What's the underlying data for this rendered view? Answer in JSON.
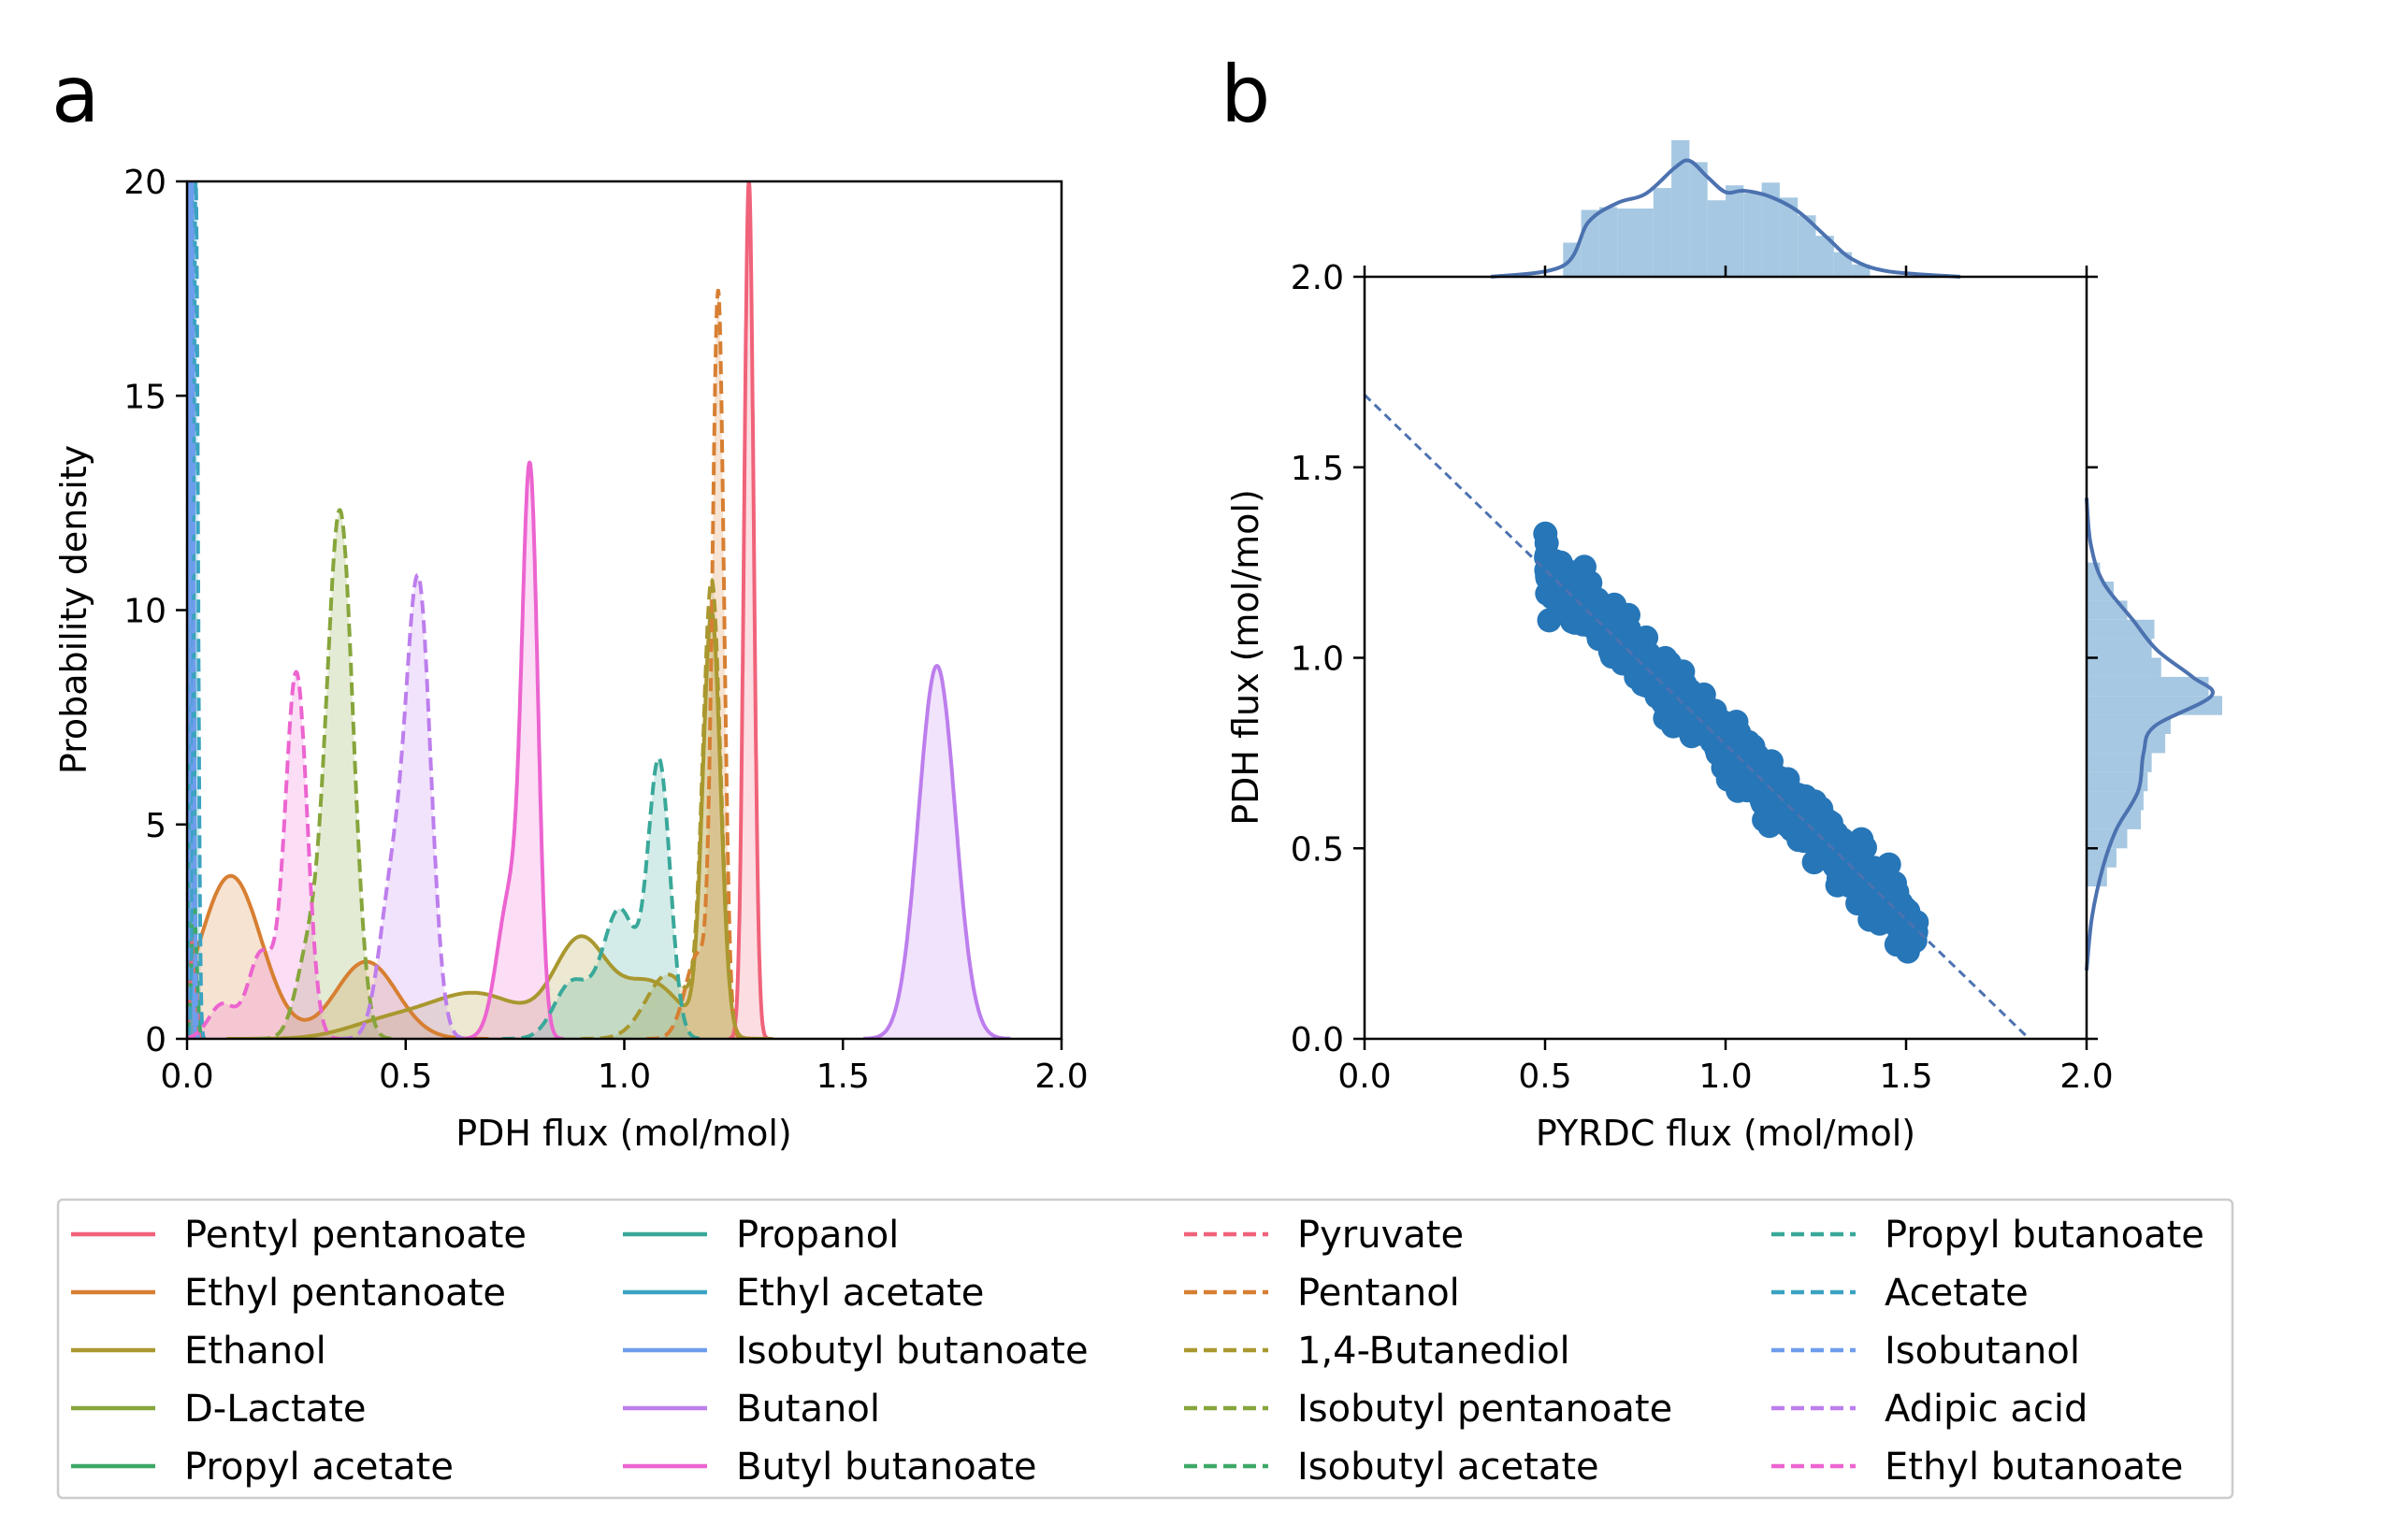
{
  "chart_data": [
    {
      "panel_label": "a",
      "type": "line",
      "subtype": "kde-density",
      "xlabel": "PDH flux (mol/mol)",
      "ylabel": "Probability density",
      "xlim": [
        0.0,
        2.0
      ],
      "ylim": [
        0,
        20
      ],
      "xticks": [
        "0.0",
        "0.5",
        "1.0",
        "1.5",
        "2.0"
      ],
      "yticks": [
        "0",
        "5",
        "10",
        "15",
        "20"
      ],
      "grid": false,
      "legend_position": "below",
      "series": [
        {
          "name": "Pentyl pentanoate",
          "style": "solid",
          "color": "#f0637a",
          "peaks": [
            {
              "x": 1.285,
              "h": 20.0,
              "w": 0.011
            }
          ]
        },
        {
          "name": "Ethyl pentanoate",
          "style": "solid",
          "color": "#d77f32",
          "peaks": [
            {
              "x": 0.1,
              "h": 3.8,
              "w": 0.07
            },
            {
              "x": 0.41,
              "h": 1.8,
              "w": 0.07
            }
          ]
        },
        {
          "name": "Ethanol",
          "style": "solid",
          "color": "#a9982f",
          "peaks": [
            {
              "x": 0.45,
              "h": 0.35,
              "w": 0.09
            },
            {
              "x": 0.66,
              "h": 1.05,
              "w": 0.11
            },
            {
              "x": 0.9,
              "h": 2.2,
              "w": 0.06
            },
            {
              "x": 1.06,
              "h": 1.3,
              "w": 0.07
            },
            {
              "x": 1.2,
              "h": 9.8,
              "w": 0.02
            }
          ]
        },
        {
          "name": "D-Lactate",
          "style": "solid",
          "color": "#86a53b",
          "peaks": [
            {
              "x": 0.014,
              "h": 2.8,
              "w": 0.006
            }
          ]
        },
        {
          "name": "Propyl acetate",
          "style": "solid",
          "color": "#3ea867",
          "peaks": [
            {
              "x": 0.014,
              "h": 3.0,
              "w": 0.006
            }
          ]
        },
        {
          "name": "Propanol",
          "style": "solid",
          "color": "#39a89a",
          "peaks": [
            {
              "x": 0.011,
              "h": 20.0,
              "w": 0.004
            }
          ]
        },
        {
          "name": "Ethyl acetate",
          "style": "solid",
          "color": "#3ba3c2",
          "peaks": [
            {
              "x": 0.009,
              "h": 20.0,
              "w": 0.004
            }
          ]
        },
        {
          "name": "Isobutyl butanoate",
          "style": "solid",
          "color": "#6e9ded",
          "peaks": [
            {
              "x": 0.006,
              "h": 20.0,
              "w": 0.004
            }
          ]
        },
        {
          "name": "Butanol",
          "style": "solid",
          "color": "#bd7eed",
          "peaks": [
            {
              "x": 1.715,
              "h": 8.7,
              "w": 0.042
            }
          ]
        },
        {
          "name": "Butyl butanoate",
          "style": "solid",
          "color": "#ec64d0",
          "peaks": [
            {
              "x": 0.785,
              "h": 12.3,
              "w": 0.018
            },
            {
              "x": 0.74,
              "h": 3.4,
              "w": 0.03
            }
          ]
        },
        {
          "name": "Pyruvate",
          "style": "dashed",
          "color": "#f0637a",
          "peaks": [
            {
              "x": 0.014,
              "h": 2.5,
              "w": 0.006
            }
          ]
        },
        {
          "name": "Pentanol",
          "style": "dashed",
          "color": "#d77f32",
          "peaks": [
            {
              "x": 1.215,
              "h": 16.8,
              "w": 0.013
            },
            {
              "x": 1.17,
              "h": 2.0,
              "w": 0.03
            }
          ]
        },
        {
          "name": "1,4-Butanediol",
          "style": "dashed",
          "color": "#a9982f",
          "peaks": [
            {
              "x": 1.2,
              "h": 10.5,
              "w": 0.02
            },
            {
              "x": 1.1,
              "h": 1.5,
              "w": 0.05
            }
          ]
        },
        {
          "name": "Isobutyl pentanoate",
          "style": "dashed",
          "color": "#86a53b",
          "peaks": [
            {
              "x": 0.35,
              "h": 12.2,
              "w": 0.03
            },
            {
              "x": 0.28,
              "h": 2.0,
              "w": 0.03
            }
          ]
        },
        {
          "name": "Isobutyl acetate",
          "style": "dashed",
          "color": "#3ea867",
          "peaks": [
            {
              "x": 0.016,
              "h": 3.0,
              "w": 0.006
            }
          ]
        },
        {
          "name": "Propyl butanoate",
          "style": "dashed",
          "color": "#39a89a",
          "peaks": [
            {
              "x": 1.08,
              "h": 6.3,
              "w": 0.025
            },
            {
              "x": 0.99,
              "h": 3.0,
              "w": 0.04
            },
            {
              "x": 0.88,
              "h": 1.3,
              "w": 0.04
            }
          ]
        },
        {
          "name": "Acetate",
          "style": "dashed",
          "color": "#3ba3c2",
          "peaks": [
            {
              "x": 0.02,
              "h": 20.0,
              "w": 0.005
            }
          ]
        },
        {
          "name": "Isobutanol",
          "style": "dashed",
          "color": "#6e9ded",
          "peaks": [
            {
              "x": 0.011,
              "h": 20.0,
              "w": 0.004
            }
          ]
        },
        {
          "name": "Adipic acid",
          "style": "dashed",
          "color": "#bd7eed",
          "peaks": [
            {
              "x": 0.53,
              "h": 10.3,
              "w": 0.028
            },
            {
              "x": 0.47,
              "h": 3.5,
              "w": 0.03
            }
          ]
        },
        {
          "name": "Ethyl butanoate",
          "style": "dashed",
          "color": "#ec64d0",
          "peaks": [
            {
              "x": 0.25,
              "h": 8.5,
              "w": 0.025
            },
            {
              "x": 0.17,
              "h": 2.0,
              "w": 0.03
            },
            {
              "x": 0.08,
              "h": 0.8,
              "w": 0.03
            }
          ]
        }
      ]
    },
    {
      "panel_label": "b",
      "type": "scatter",
      "subtype": "joint-plot-with-regression-line",
      "xlabel": "PYRDC flux (mol/mol)",
      "ylabel": "PDH flux (mol/mol)",
      "xlim": [
        0.0,
        2.0
      ],
      "ylim": [
        0.0,
        2.0
      ],
      "xticks": [
        "0.0",
        "0.5",
        "1.0",
        "1.5",
        "2.0"
      ],
      "yticks": [
        "0.0",
        "0.5",
        "1.0",
        "1.5",
        "2.0"
      ],
      "grid": false,
      "point_color": "#2776b8",
      "line_color": "#4c72b0",
      "regression": {
        "intercept": 1.69,
        "slope": -0.918
      },
      "scatter": {
        "x_range": [
          0.5,
          1.53
        ],
        "spread": 0.035
      },
      "marginal_x": {
        "hist_color": "#a6c8e2",
        "bins": [
          [
            0.55,
            0.6,
            0.25
          ],
          [
            0.6,
            0.65,
            0.49
          ],
          [
            0.65,
            0.7,
            0.51
          ],
          [
            0.7,
            0.75,
            0.5
          ],
          [
            0.75,
            0.8,
            0.5
          ],
          [
            0.8,
            0.85,
            0.65
          ],
          [
            0.85,
            0.9,
            1.0
          ],
          [
            0.9,
            0.95,
            0.84
          ],
          [
            0.95,
            1.0,
            0.56
          ],
          [
            1.0,
            1.05,
            0.67
          ],
          [
            1.05,
            1.1,
            0.61
          ],
          [
            1.1,
            1.15,
            0.69
          ],
          [
            1.15,
            1.2,
            0.58
          ],
          [
            1.2,
            1.25,
            0.45
          ],
          [
            1.25,
            1.3,
            0.3
          ],
          [
            1.3,
            1.35,
            0.18
          ],
          [
            1.35,
            1.4,
            0.09
          ]
        ],
        "kde": [
          [
            0.35,
            0.0
          ],
          [
            0.55,
            0.08
          ],
          [
            0.62,
            0.4
          ],
          [
            0.7,
            0.54
          ],
          [
            0.78,
            0.61
          ],
          [
            0.86,
            0.8
          ],
          [
            0.9,
            0.85
          ],
          [
            0.95,
            0.73
          ],
          [
            1.0,
            0.62
          ],
          [
            1.05,
            0.63
          ],
          [
            1.12,
            0.59
          ],
          [
            1.2,
            0.48
          ],
          [
            1.28,
            0.29
          ],
          [
            1.35,
            0.13
          ],
          [
            1.45,
            0.04
          ],
          [
            1.65,
            0.0
          ]
        ]
      },
      "marginal_y": {
        "hist_color": "#a6c8e2",
        "bins": [
          [
            0.4,
            0.45,
            0.15
          ],
          [
            0.45,
            0.5,
            0.22
          ],
          [
            0.5,
            0.55,
            0.3
          ],
          [
            0.55,
            0.6,
            0.4
          ],
          [
            0.6,
            0.65,
            0.42
          ],
          [
            0.65,
            0.7,
            0.45
          ],
          [
            0.7,
            0.75,
            0.48
          ],
          [
            0.75,
            0.8,
            0.58
          ],
          [
            0.8,
            0.85,
            0.62
          ],
          [
            0.85,
            0.9,
            1.0
          ],
          [
            0.9,
            0.95,
            0.9
          ],
          [
            0.95,
            1.0,
            0.55
          ],
          [
            1.0,
            1.05,
            0.48
          ],
          [
            1.05,
            1.1,
            0.5
          ],
          [
            1.1,
            1.15,
            0.3
          ],
          [
            1.15,
            1.2,
            0.2
          ],
          [
            1.2,
            1.25,
            0.1
          ]
        ],
        "kde": [
          [
            0.18,
            0.0
          ],
          [
            0.32,
            0.04
          ],
          [
            0.45,
            0.12
          ],
          [
            0.55,
            0.22
          ],
          [
            0.65,
            0.38
          ],
          [
            0.75,
            0.42
          ],
          [
            0.82,
            0.5
          ],
          [
            0.9,
            0.92
          ],
          [
            0.95,
            0.78
          ],
          [
            1.02,
            0.52
          ],
          [
            1.1,
            0.34
          ],
          [
            1.2,
            0.12
          ],
          [
            1.3,
            0.03
          ],
          [
            1.42,
            0.0
          ]
        ]
      }
    }
  ]
}
